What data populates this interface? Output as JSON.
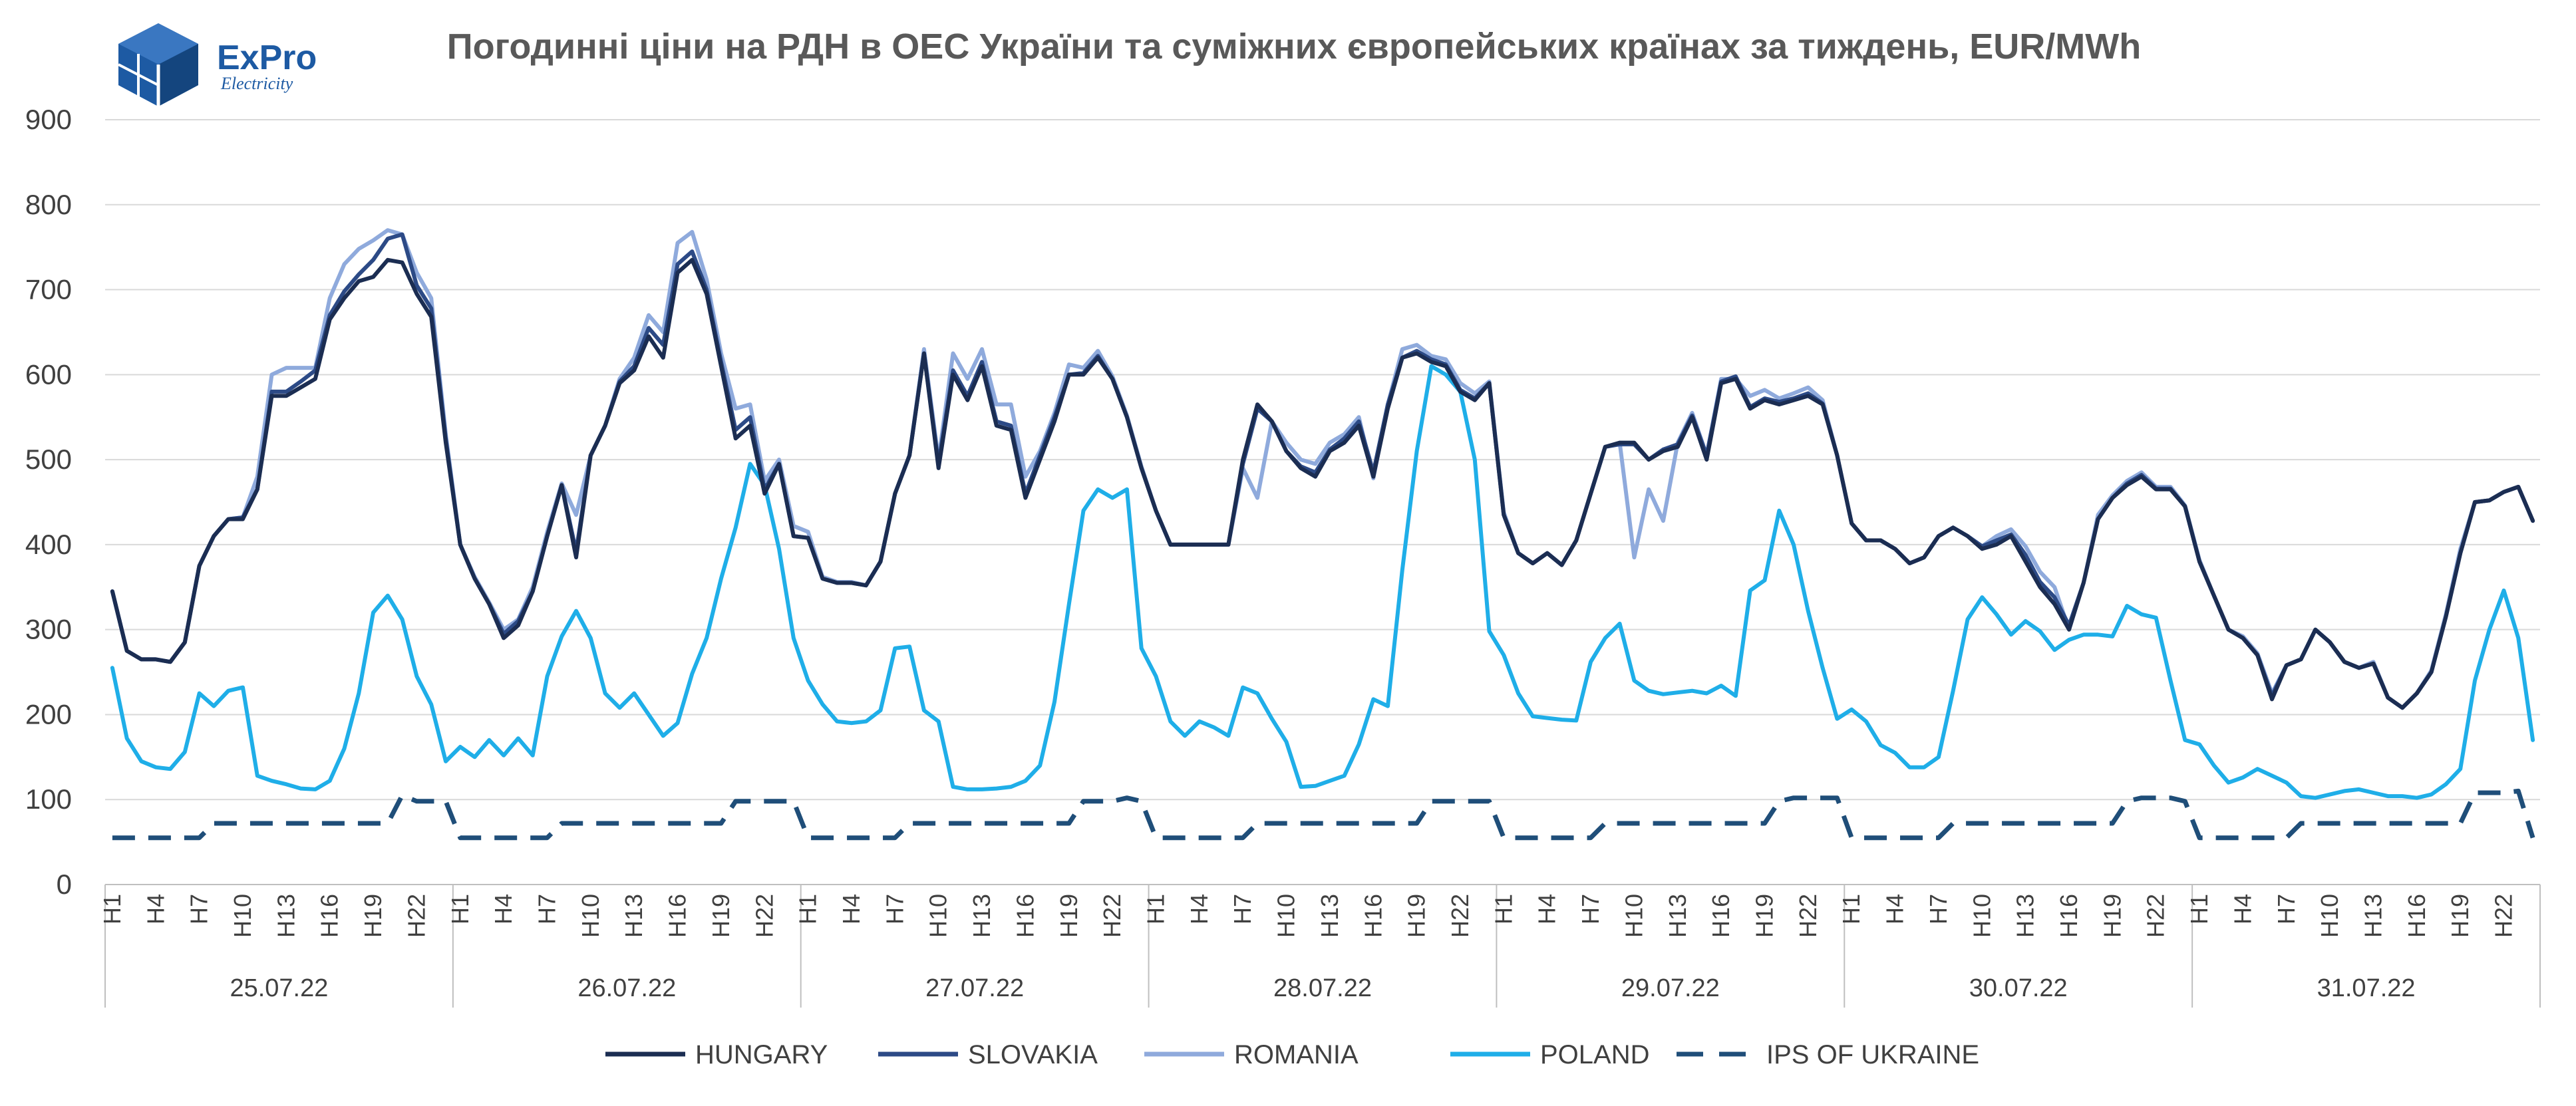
{
  "logo": {
    "name": "ExPro",
    "sub": "Electricity"
  },
  "chart_data": {
    "type": "line",
    "title": "Погодинні ціни на РДН в ОЕС України та суміжних європейських країнах за тиждень, EUR/MWh",
    "ylim": [
      0,
      900
    ],
    "yticks": [
      0,
      100,
      200,
      300,
      400,
      500,
      600,
      700,
      800,
      900
    ],
    "grid": true,
    "legend_position": "bottom",
    "days": [
      "25.07.22",
      "26.07.22",
      "27.07.22",
      "28.07.22",
      "29.07.22",
      "30.07.22",
      "31.07.22"
    ],
    "hour_tick_labels": [
      "H1",
      "H4",
      "H7",
      "H10",
      "H13",
      "H16",
      "H19",
      "H22"
    ],
    "hours_per_day": 24,
    "series": [
      {
        "name": "HUNGARY",
        "color": "#1b2d52",
        "style": "solid",
        "values": [
          345,
          275,
          265,
          265,
          262,
          285,
          375,
          410,
          430,
          430,
          465,
          575,
          575,
          585,
          595,
          665,
          690,
          710,
          715,
          735,
          732,
          695,
          668,
          520,
          400,
          360,
          330,
          290,
          305,
          345,
          410,
          470,
          385,
          505,
          540,
          590,
          605,
          645,
          620,
          720,
          735,
          695,
          610,
          525,
          540,
          460,
          495,
          410,
          408,
          360,
          355,
          355,
          352,
          380,
          460,
          505,
          625,
          490,
          600,
          570,
          610,
          540,
          535,
          455,
          500,
          545,
          600,
          600,
          620,
          595,
          550,
          490,
          440,
          400,
          400,
          400,
          400,
          400,
          500,
          565,
          545,
          510,
          490,
          480,
          510,
          520,
          540,
          480,
          560,
          620,
          625,
          615,
          610,
          580,
          570,
          590,
          435,
          390,
          378,
          390,
          376,
          405,
          460,
          515,
          520,
          520,
          500,
          510,
          515,
          550,
          500,
          590,
          595,
          560,
          570,
          565,
          570,
          575,
          565,
          505,
          425,
          405,
          405,
          395,
          378,
          385,
          410,
          420,
          410,
          395,
          400,
          410,
          380,
          350,
          330,
          300,
          355,
          430,
          455,
          470,
          480,
          465,
          465,
          445,
          380,
          340,
          300,
          290,
          270,
          218,
          258,
          265,
          300,
          285,
          262,
          255,
          260,
          220,
          208,
          225,
          250,
          315,
          390,
          450,
          452,
          462,
          468,
          428
        ]
      },
      {
        "name": "SLOVAKIA",
        "color": "#2c4a86",
        "style": "solid",
        "values": [
          345,
          275,
          265,
          265,
          262,
          285,
          375,
          410,
          430,
          432,
          465,
          580,
          580,
          592,
          605,
          670,
          698,
          718,
          735,
          760,
          765,
          705,
          678,
          525,
          400,
          360,
          330,
          295,
          310,
          345,
          410,
          470,
          392,
          505,
          540,
          592,
          610,
          655,
          635,
          730,
          745,
          700,
          615,
          535,
          550,
          465,
          495,
          410,
          408,
          360,
          355,
          355,
          352,
          380,
          460,
          505,
          625,
          495,
          605,
          575,
          615,
          545,
          540,
          460,
          505,
          550,
          600,
          602,
          622,
          595,
          550,
          490,
          440,
          400,
          400,
          400,
          400,
          400,
          495,
          560,
          545,
          510,
          492,
          485,
          512,
          525,
          545,
          485,
          565,
          620,
          628,
          618,
          612,
          582,
          572,
          590,
          435,
          390,
          378,
          390,
          376,
          405,
          460,
          515,
          518,
          518,
          500,
          512,
          518,
          552,
          505,
          592,
          598,
          562,
          572,
          568,
          572,
          578,
          566,
          505,
          425,
          405,
          405,
          395,
          378,
          385,
          410,
          420,
          410,
          398,
          405,
          412,
          388,
          356,
          338,
          305,
          355,
          430,
          455,
          472,
          482,
          466,
          466,
          445,
          380,
          340,
          300,
          290,
          270,
          222,
          258,
          265,
          300,
          285,
          262,
          255,
          260,
          220,
          208,
          225,
          250,
          315,
          390,
          450,
          452,
          462,
          468,
          428
        ]
      },
      {
        "name": "ROMANIA",
        "color": "#8faadc",
        "style": "solid",
        "values": [
          345,
          275,
          265,
          265,
          262,
          285,
          375,
          410,
          430,
          432,
          480,
          600,
          608,
          608,
          608,
          690,
          730,
          748,
          758,
          770,
          765,
          720,
          690,
          530,
          400,
          362,
          332,
          300,
          312,
          350,
          415,
          472,
          435,
          505,
          540,
          595,
          620,
          670,
          650,
          755,
          768,
          712,
          625,
          560,
          565,
          475,
          500,
          422,
          415,
          362,
          356,
          356,
          352,
          380,
          460,
          505,
          630,
          500,
          625,
          595,
          630,
          565,
          565,
          480,
          510,
          555,
          612,
          608,
          628,
          598,
          552,
          492,
          440,
          400,
          400,
          400,
          400,
          400,
          490,
          455,
          545,
          520,
          500,
          495,
          520,
          530,
          550,
          478,
          565,
          630,
          635,
          622,
          618,
          590,
          578,
          592,
          438,
          390,
          378,
          390,
          376,
          405,
          460,
          515,
          520,
          385,
          465,
          428,
          520,
          555,
          505,
          595,
          595,
          575,
          582,
          572,
          578,
          585,
          570,
          505,
          425,
          405,
          405,
          395,
          378,
          385,
          410,
          420,
          410,
          398,
          410,
          418,
          398,
          368,
          350,
          300,
          355,
          435,
          458,
          475,
          485,
          468,
          468,
          446,
          382,
          340,
          300,
          292,
          272,
          225,
          258,
          265,
          300,
          285,
          262,
          255,
          262,
          220,
          208,
          225,
          252,
          318,
          395,
          450,
          452,
          462,
          468,
          428
        ]
      },
      {
        "name": "POLAND",
        "color": "#1faee8",
        "style": "solid",
        "values": [
          255,
          172,
          145,
          138,
          136,
          156,
          225,
          210,
          228,
          232,
          128,
          122,
          118,
          113,
          112,
          122,
          160,
          225,
          320,
          340,
          312,
          245,
          212,
          145,
          162,
          150,
          170,
          152,
          172,
          152,
          245,
          292,
          322,
          290,
          225,
          208,
          225,
          200,
          175,
          190,
          248,
          290,
          360,
          420,
          495,
          470,
          395,
          290,
          240,
          212,
          192,
          190,
          192,
          205,
          278,
          280,
          205,
          192,
          115,
          112,
          112,
          113,
          115,
          122,
          140,
          215,
          330,
          440,
          465,
          455,
          465,
          278,
          245,
          192,
          175,
          192,
          185,
          175,
          232,
          225,
          195,
          168,
          115,
          116,
          122,
          128,
          165,
          218,
          210,
          370,
          510,
          610,
          600,
          580,
          500,
          298,
          270,
          225,
          198,
          196,
          194,
          193,
          262,
          290,
          307,
          240,
          228,
          224,
          226,
          228,
          225,
          234,
          222,
          346,
          358,
          440,
          400,
          322,
          255,
          195,
          206,
          192,
          164,
          155,
          138,
          138,
          150,
          228,
          312,
          338,
          318,
          294,
          310,
          298,
          276,
          288,
          294,
          294,
          292,
          328,
          318,
          314,
          240,
          170,
          165,
          140,
          120,
          126,
          136,
          128,
          120,
          104,
          102,
          106,
          110,
          112,
          108,
          104,
          104,
          102,
          106,
          118,
          136,
          240,
          300,
          346,
          290,
          170
        ]
      },
      {
        "name": "IPS OF UKRAINE",
        "color": "#1f4e79",
        "style": "dashed",
        "values": [
          55,
          55,
          55,
          55,
          55,
          55,
          55,
          72,
          72,
          72,
          72,
          72,
          72,
          72,
          72,
          72,
          72,
          72,
          72,
          72,
          105,
          98,
          98,
          98,
          55,
          55,
          55,
          55,
          55,
          55,
          55,
          72,
          72,
          72,
          72,
          72,
          72,
          72,
          72,
          72,
          72,
          72,
          72,
          98,
          98,
          98,
          98,
          98,
          55,
          55,
          55,
          55,
          55,
          55,
          55,
          72,
          72,
          72,
          72,
          72,
          72,
          72,
          72,
          72,
          72,
          72,
          72,
          98,
          98,
          98,
          102,
          98,
          55,
          55,
          55,
          55,
          55,
          55,
          55,
          72,
          72,
          72,
          72,
          72,
          72,
          72,
          72,
          72,
          72,
          72,
          72,
          98,
          98,
          98,
          98,
          98,
          55,
          55,
          55,
          55,
          55,
          55,
          55,
          72,
          72,
          72,
          72,
          72,
          72,
          72,
          72,
          72,
          72,
          72,
          72,
          98,
          102,
          102,
          102,
          102,
          55,
          55,
          55,
          55,
          55,
          55,
          55,
          72,
          72,
          72,
          72,
          72,
          72,
          72,
          72,
          72,
          72,
          72,
          72,
          98,
          102,
          102,
          102,
          98,
          55,
          55,
          55,
          55,
          55,
          55,
          55,
          72,
          72,
          72,
          72,
          72,
          72,
          72,
          72,
          72,
          72,
          72,
          72,
          108,
          108,
          108,
          110,
          55
        ]
      }
    ]
  }
}
